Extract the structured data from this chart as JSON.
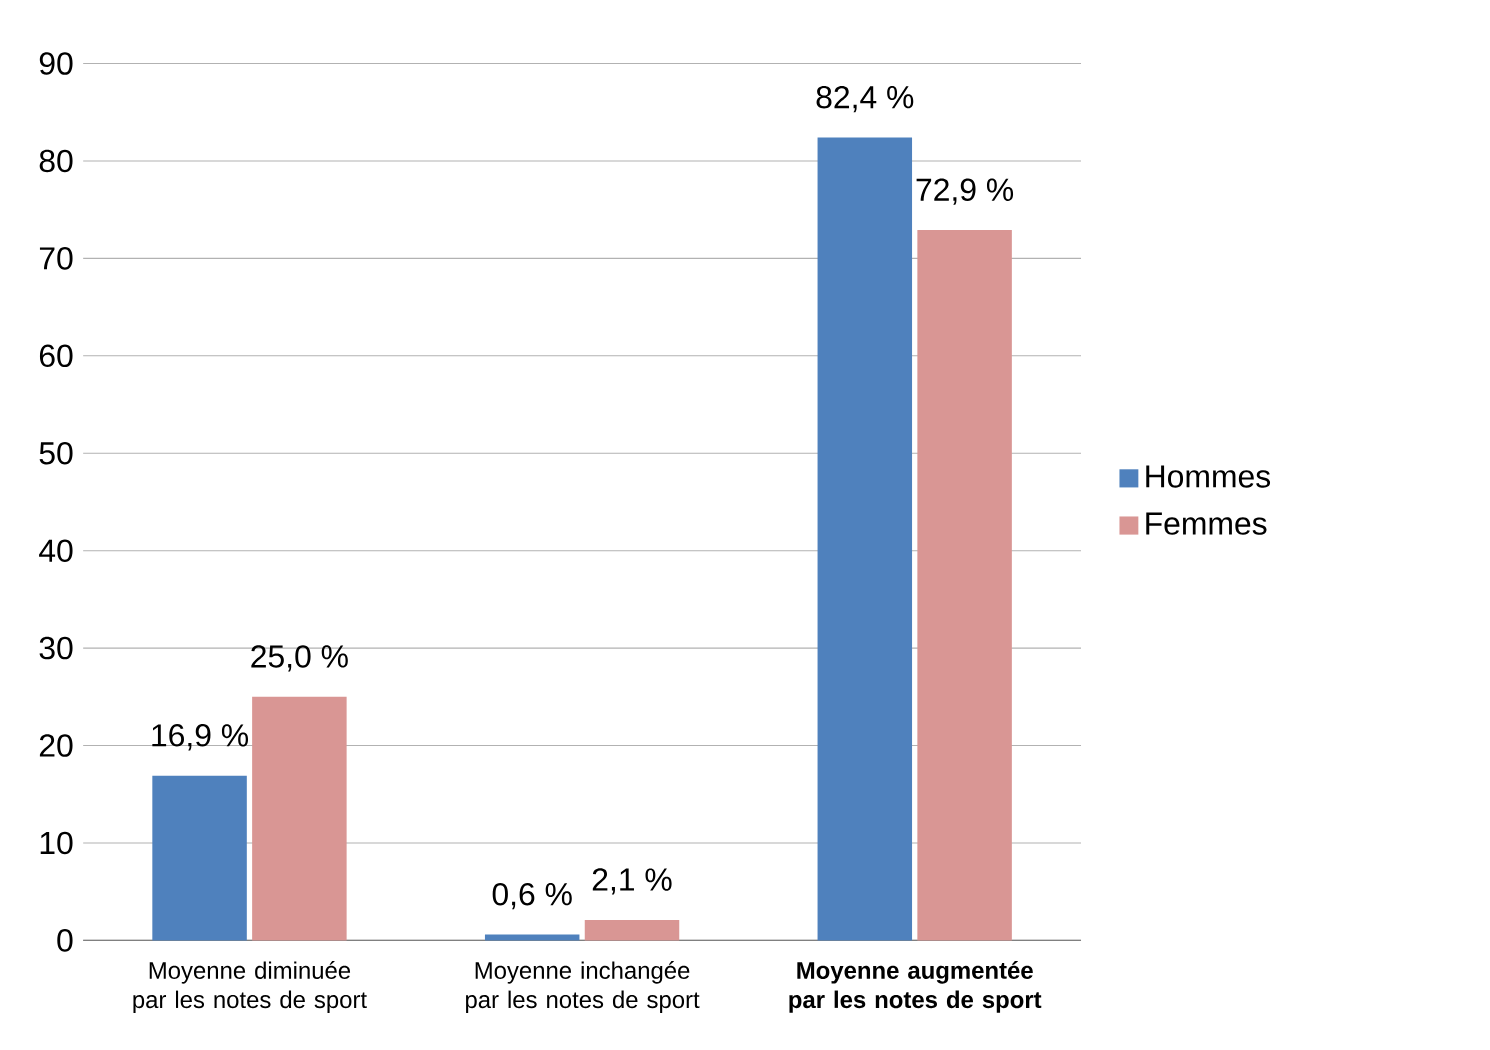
{
  "chart_data": {
    "type": "bar",
    "categories": [
      "Moyenne diminuée par les notes de sport",
      "Moyenne inchangée par les notes de sport",
      "**Moyenne augmentée par les notes de sport**"
    ],
    "series": [
      {
        "name": "Hommes",
        "color": "#4f81bd",
        "values": [
          16.9,
          0.6,
          82.4
        ],
        "value_labels": [
          "16,9 %",
          "0,6 %",
          "82,4 %"
        ]
      },
      {
        "name": "Femmes",
        "color": "#d99694",
        "values": [
          25.0,
          2.1,
          72.9
        ],
        "value_labels": [
          "25,0 %",
          "2,1 %",
          "72,9 %"
        ]
      }
    ],
    "ylim": [
      0,
      90
    ],
    "yticks": [
      0,
      10,
      20,
      30,
      40,
      50,
      60,
      70,
      80,
      90
    ],
    "grid": "y",
    "legend": "right"
  }
}
